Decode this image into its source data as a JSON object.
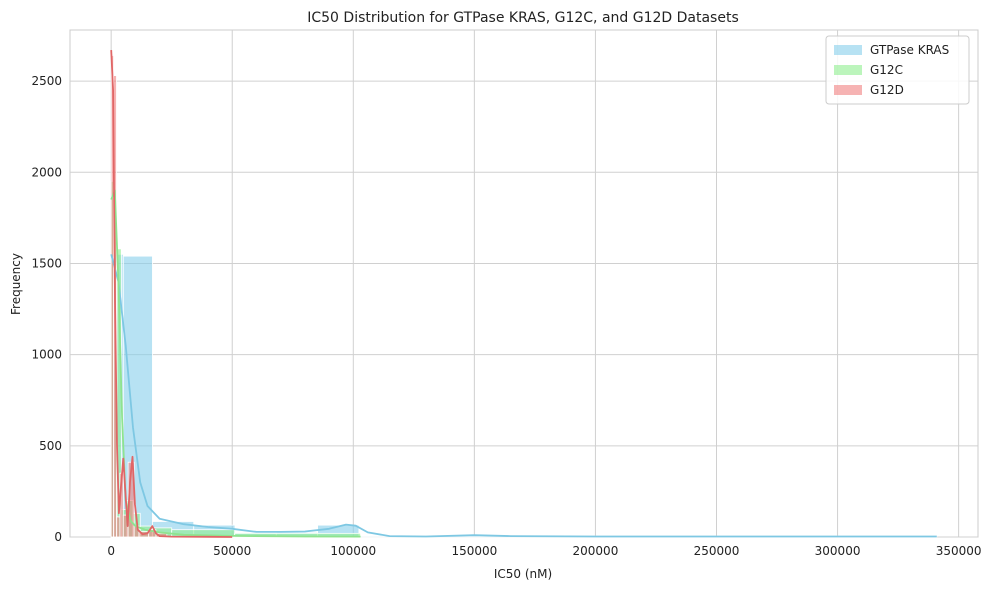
{
  "chart_data": {
    "type": "histogram",
    "title": "IC50 Distribution for GTPase KRAS, G12C, and G12D Datasets",
    "xlabel": "IC50 (nM)",
    "ylabel": "Frequency",
    "xlim": [
      -17000,
      358000
    ],
    "ylim": [
      0,
      2780
    ],
    "xticks": [
      0,
      50000,
      100000,
      150000,
      200000,
      250000,
      300000,
      350000
    ],
    "yticks": [
      0,
      500,
      1000,
      1500,
      2000,
      2500
    ],
    "grid": true,
    "legend_position": "top-right",
    "series": [
      {
        "name": "GTPase KRAS",
        "color": "#87CEEB",
        "bin_width": 17050,
        "bins": [
          {
            "x0": 0,
            "x1": 5000,
            "count": 1550
          },
          {
            "x0": 5000,
            "x1": 17050,
            "count": 1540
          },
          {
            "x0": 17050,
            "x1": 34100,
            "count": 85
          },
          {
            "x0": 34100,
            "x1": 51150,
            "count": 65
          },
          {
            "x0": 51150,
            "x1": 68200,
            "count": 20
          },
          {
            "x0": 68200,
            "x1": 85250,
            "count": 25
          },
          {
            "x0": 85250,
            "x1": 102300,
            "count": 65
          },
          {
            "x0": 102300,
            "x1": 341000,
            "count": 5
          }
        ],
        "kde": [
          [
            0,
            1550
          ],
          [
            3000,
            1400
          ],
          [
            6000,
            1050
          ],
          [
            9000,
            600
          ],
          [
            12000,
            300
          ],
          [
            15000,
            170
          ],
          [
            20000,
            100
          ],
          [
            30000,
            70
          ],
          [
            40000,
            55
          ],
          [
            50000,
            45
          ],
          [
            60000,
            28
          ],
          [
            70000,
            28
          ],
          [
            80000,
            30
          ],
          [
            90000,
            45
          ],
          [
            97000,
            68
          ],
          [
            101000,
            62
          ],
          [
            106000,
            25
          ],
          [
            115000,
            5
          ],
          [
            130000,
            3
          ],
          [
            150000,
            10
          ],
          [
            165000,
            5
          ],
          [
            200000,
            3
          ],
          [
            250000,
            3
          ],
          [
            300000,
            3
          ],
          [
            341000,
            3
          ]
        ]
      },
      {
        "name": "G12C",
        "color": "#90EE90",
        "bins": [
          {
            "x0": 0,
            "x1": 1200,
            "count": 1950
          },
          {
            "x0": 1200,
            "x1": 2400,
            "count": 1850
          },
          {
            "x0": 2400,
            "x1": 4200,
            "count": 1580
          },
          {
            "x0": 4200,
            "x1": 6500,
            "count": 150
          },
          {
            "x0": 6500,
            "x1": 9000,
            "count": 200
          },
          {
            "x0": 9000,
            "x1": 12000,
            "count": 130
          },
          {
            "x0": 12000,
            "x1": 17000,
            "count": 60
          },
          {
            "x0": 17000,
            "x1": 25000,
            "count": 50
          },
          {
            "x0": 25000,
            "x1": 51000,
            "count": 40
          },
          {
            "x0": 51000,
            "x1": 103000,
            "count": 20
          }
        ],
        "kde": [
          [
            0,
            1850
          ],
          [
            1500,
            1900
          ],
          [
            3000,
            1400
          ],
          [
            4500,
            650
          ],
          [
            6000,
            200
          ],
          [
            8000,
            90
          ],
          [
            10000,
            60
          ],
          [
            14000,
            40
          ],
          [
            20000,
            25
          ],
          [
            30000,
            12
          ],
          [
            50000,
            6
          ],
          [
            80000,
            3
          ],
          [
            103000,
            2
          ]
        ]
      },
      {
        "name": "G12D",
        "color": "#F08080",
        "bins": [
          {
            "x0": 0,
            "x1": 1000,
            "count": 2640
          },
          {
            "x0": 1000,
            "x1": 2200,
            "count": 2530
          },
          {
            "x0": 2200,
            "x1": 3600,
            "count": 110
          },
          {
            "x0": 3600,
            "x1": 5000,
            "count": 350
          },
          {
            "x0": 5000,
            "x1": 7000,
            "count": 120
          },
          {
            "x0": 7000,
            "x1": 9500,
            "count": 410
          },
          {
            "x0": 9500,
            "x1": 11500,
            "count": 60
          },
          {
            "x0": 11500,
            "x1": 15500,
            "count": 30
          },
          {
            "x0": 15500,
            "x1": 18500,
            "count": 40
          },
          {
            "x0": 18500,
            "x1": 23000,
            "count": 20
          }
        ],
        "kde": [
          [
            0,
            2670
          ],
          [
            800,
            2450
          ],
          [
            1600,
            1300
          ],
          [
            2400,
            500
          ],
          [
            3200,
            130
          ],
          [
            4200,
            300
          ],
          [
            5000,
            430
          ],
          [
            5800,
            260
          ],
          [
            6800,
            60
          ],
          [
            7800,
            300
          ],
          [
            8800,
            440
          ],
          [
            9800,
            180
          ],
          [
            11000,
            40
          ],
          [
            13000,
            15
          ],
          [
            15000,
            20
          ],
          [
            17000,
            60
          ],
          [
            18500,
            20
          ],
          [
            20000,
            5
          ],
          [
            25000,
            2
          ],
          [
            40000,
            1
          ],
          [
            50000,
            0
          ]
        ]
      }
    ]
  }
}
